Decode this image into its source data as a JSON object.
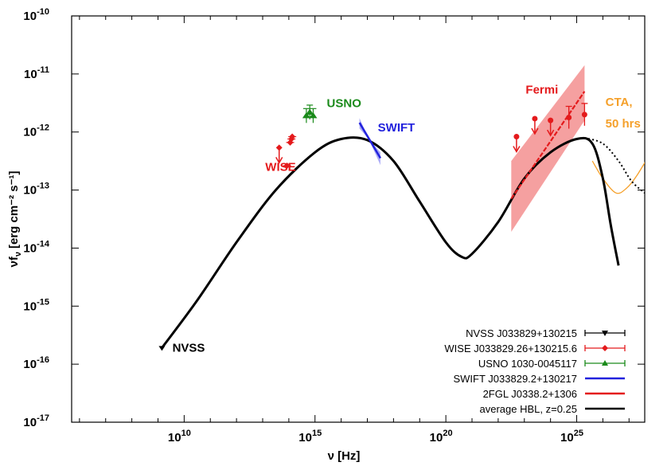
{
  "chart_data": {
    "type": "scatter",
    "xlabel": "ν [Hz]",
    "ylabel": "νf",
    "ylabel_sub": "ν",
    "ylabel_unit": "[erg cm⁻² s⁻¹]",
    "x_scale": "log",
    "y_scale": "log",
    "xlim_log10": [
      5.7,
      27.6
    ],
    "ylim_log10": [
      -17,
      -10
    ],
    "x_ticks": [
      {
        "log": 10,
        "base": "10",
        "exp": "10"
      },
      {
        "log": 15,
        "base": "10",
        "exp": "15"
      },
      {
        "log": 20,
        "base": "10",
        "exp": "20"
      },
      {
        "log": 25,
        "base": "10",
        "exp": "25"
      }
    ],
    "y_ticks": [
      {
        "log": -10,
        "base": "10",
        "exp": "-10"
      },
      {
        "log": -11,
        "base": "10",
        "exp": "-11"
      },
      {
        "log": -12,
        "base": "10",
        "exp": "-12"
      },
      {
        "log": -13,
        "base": "10",
        "exp": "-13"
      },
      {
        "log": -14,
        "base": "10",
        "exp": "-14"
      },
      {
        "log": -15,
        "base": "10",
        "exp": "-15"
      },
      {
        "log": -16,
        "base": "10",
        "exp": "-16"
      },
      {
        "log": -17,
        "base": "10",
        "exp": "-17"
      }
    ],
    "grid": false,
    "legend_position": "bottom-right",
    "series": [
      {
        "name": "NVSS J033829+130215",
        "color": "#000000",
        "marker": "triangle-down",
        "upper_limit": true,
        "points_log": [
          [
            9.15,
            -15.72
          ]
        ]
      },
      {
        "name": "WISE J033829.26+130215.6",
        "color": "#e41a1c",
        "marker": "diamond",
        "points_log": [
          [
            13.63,
            -12.27,
            "ul"
          ],
          [
            13.93,
            -12.58,
            "pt"
          ],
          [
            14.05,
            -12.18,
            "pt"
          ],
          [
            14.1,
            -12.12,
            "pt"
          ],
          [
            14.13,
            -12.08,
            "pt"
          ]
        ]
      },
      {
        "name": "USNO 1030-0045117",
        "color": "#1a8a1a",
        "marker": "triangle-up",
        "points_log": [
          [
            14.67,
            -11.72
          ],
          [
            14.8,
            -11.66
          ],
          [
            14.93,
            -11.72
          ]
        ]
      },
      {
        "name": "SWIFT J033829.2+130217",
        "color": "#2222dd",
        "marker": "line",
        "line_log": [
          [
            16.7,
            -11.84
          ],
          [
            17.5,
            -12.45
          ]
        ]
      },
      {
        "name": "2FGL J0338.2+1306",
        "color": "#e41a1c",
        "marker": "line",
        "line_log": [
          [
            22.5,
            -13.15
          ],
          [
            25.3,
            -11.3
          ]
        ],
        "band_upper_log": [
          [
            22.5,
            -12.5
          ],
          [
            25.3,
            -10.85
          ]
        ],
        "band_lower_log": [
          [
            22.5,
            -13.72
          ],
          [
            25.3,
            -11.8
          ]
        ],
        "flux_points_log": [
          [
            22.7,
            -12.08,
            "ul"
          ],
          [
            23.4,
            -11.77,
            "ul"
          ],
          [
            24.0,
            -11.8,
            "ul"
          ],
          [
            24.7,
            -11.75,
            "pt"
          ],
          [
            25.3,
            -11.7,
            "pt"
          ]
        ]
      },
      {
        "name": "average HBL, z=0.25",
        "color": "#000000",
        "marker": "line",
        "curve_log": [
          [
            9.15,
            -15.72
          ],
          [
            10.5,
            -14.9
          ],
          [
            12,
            -13.9
          ],
          [
            13.5,
            -13.0
          ],
          [
            15,
            -12.35
          ],
          [
            16,
            -12.12
          ],
          [
            17,
            -12.14
          ],
          [
            18,
            -12.5
          ],
          [
            19,
            -13.2
          ],
          [
            20,
            -13.9
          ],
          [
            20.6,
            -14.15
          ],
          [
            21,
            -14.1
          ],
          [
            22,
            -13.55
          ],
          [
            23,
            -12.8
          ],
          [
            24,
            -12.35
          ],
          [
            25,
            -12.12
          ],
          [
            25.6,
            -12.2
          ],
          [
            26.0,
            -12.8
          ],
          [
            26.3,
            -13.6
          ],
          [
            26.6,
            -14.3
          ]
        ],
        "extrapolation_log": [
          [
            25.3,
            -12.1
          ],
          [
            26.0,
            -12.2
          ],
          [
            26.6,
            -12.5
          ],
          [
            27.1,
            -12.85
          ],
          [
            27.6,
            -13.05
          ]
        ]
      },
      {
        "name": "CTA, 50 hrs",
        "color": "#f5a02a",
        "marker": "line",
        "curve_log": [
          [
            25.6,
            -12.5
          ],
          [
            26.0,
            -12.8
          ],
          [
            26.5,
            -13.05
          ],
          [
            26.9,
            -12.97
          ],
          [
            27.3,
            -12.75
          ],
          [
            27.9,
            -12.3
          ]
        ]
      }
    ],
    "annotations": [
      {
        "text": "WISE",
        "color": "#e41a1c",
        "x_log": 13.1,
        "y_log": -12.6
      },
      {
        "text": "USNO",
        "color": "#1a8a1a",
        "x_log": 15.45,
        "y_log": -11.5
      },
      {
        "text": "SWIFT",
        "color": "#2222dd",
        "x_log": 17.4,
        "y_log": -11.92
      },
      {
        "text": "Fermi",
        "color": "#e41a1c",
        "x_log": 23.05,
        "y_log": -11.27
      },
      {
        "text": "CTA,",
        "color": "#f5a02a",
        "x_log": 26.1,
        "y_log": -11.48
      },
      {
        "text": "50 hrs",
        "color": "#f5a02a",
        "x_log": 26.1,
        "y_log": -11.85
      },
      {
        "text": "NVSS",
        "color": "#000000",
        "x_log": 9.55,
        "y_log": -15.72
      }
    ]
  }
}
